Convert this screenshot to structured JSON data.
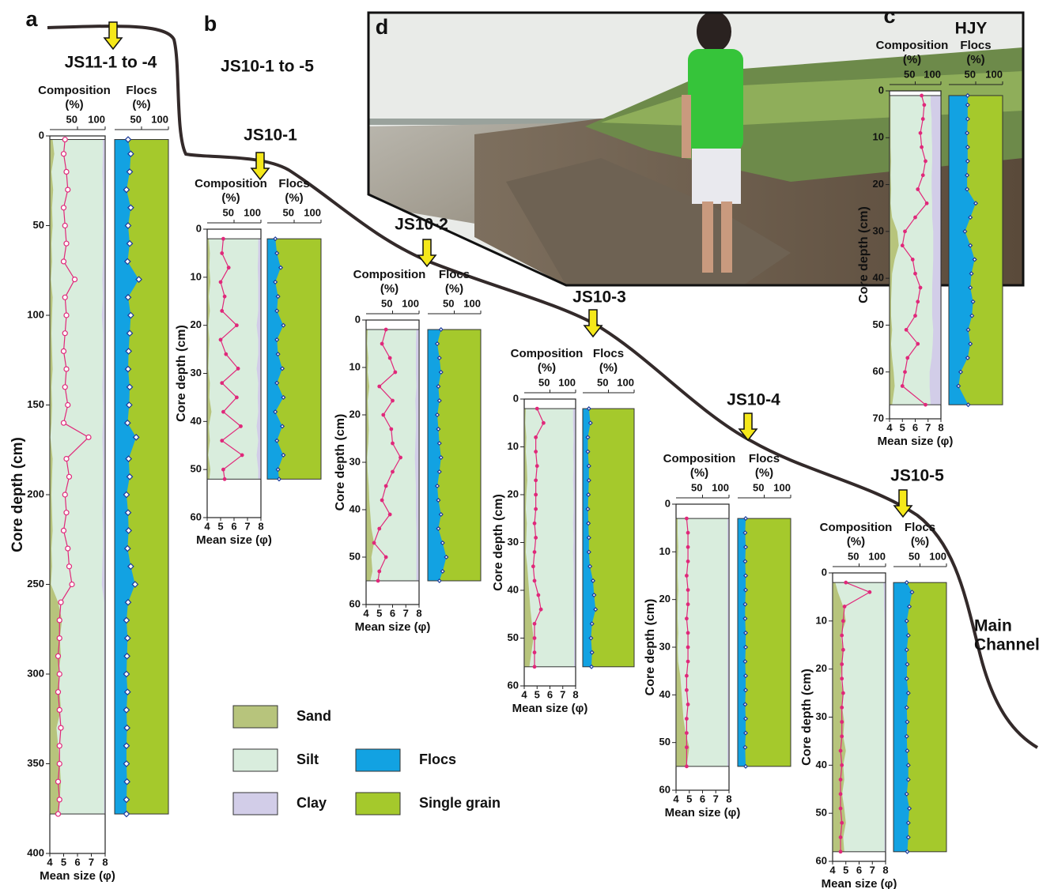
{
  "figure": {
    "letters": [
      "a",
      "b",
      "c",
      "d"
    ],
    "group_label": "JS10-1 to -5",
    "main_channel": [
      "Main",
      "Channel"
    ]
  },
  "legend": [
    {
      "name": "Sand",
      "color": "#b7c47c"
    },
    {
      "name": "Silt",
      "color": "#d9eddd"
    },
    {
      "name": "Clay",
      "color": "#d2cde8"
    },
    {
      "name": "Flocs",
      "color": "#12a2e2"
    },
    {
      "name": "Single grain",
      "color": "#a5c92c"
    }
  ],
  "chart_data": [
    {
      "type": "core",
      "title": "JS11-1 to -4",
      "composition_label": [
        "Composition",
        "(%)"
      ],
      "flocs_label": [
        "Flocs",
        "(%)"
      ],
      "ylabel": "Core depth (cm)",
      "xlabel": "Mean size (φ)",
      "ylim": [
        0,
        400
      ],
      "yticks": [
        0,
        50,
        100,
        150,
        200,
        250,
        300,
        350,
        400
      ],
      "xlim": [
        4,
        8
      ],
      "xticks": [
        4,
        5,
        6,
        7,
        8
      ],
      "comp_lim": [
        0,
        100
      ],
      "comp_ticks": [
        50,
        100
      ],
      "flocs_lim": [
        0,
        100
      ],
      "flocs_ticks": [
        50,
        100
      ],
      "depth": [
        2,
        10,
        20,
        30,
        40,
        50,
        60,
        70,
        80,
        90,
        100,
        110,
        120,
        130,
        140,
        150,
        160,
        168,
        180,
        190,
        200,
        210,
        220,
        230,
        240,
        250,
        260,
        270,
        280,
        290,
        300,
        310,
        320,
        330,
        340,
        350,
        360,
        370,
        378
      ],
      "mean_size": [
        5.1,
        5.0,
        5.2,
        5.3,
        5.0,
        5.1,
        5.2,
        5.0,
        5.8,
        5.1,
        5.2,
        5.1,
        5.0,
        5.2,
        5.1,
        5.3,
        5.0,
        6.8,
        5.2,
        5.4,
        5.1,
        5.2,
        5.0,
        5.3,
        5.4,
        5.6,
        4.8,
        4.7,
        4.7,
        4.6,
        4.7,
        4.6,
        4.7,
        4.8,
        4.7,
        4.7,
        4.6,
        4.7,
        4.6
      ],
      "sand": [
        5,
        8,
        3,
        6,
        4,
        5,
        3,
        4,
        2,
        5,
        4,
        3,
        4,
        5,
        3,
        4,
        3,
        1,
        5,
        4,
        3,
        4,
        5,
        3,
        4,
        2,
        15,
        22,
        18,
        20,
        15,
        18,
        20,
        12,
        15,
        18,
        20,
        18,
        15
      ],
      "clay": [
        4,
        4,
        5,
        4,
        4,
        3,
        4,
        4,
        5,
        4,
        6,
        4,
        4,
        4,
        5,
        4,
        4,
        5,
        4,
        4,
        4,
        5,
        4,
        4,
        5,
        6,
        2,
        2,
        2,
        2,
        2,
        2,
        2,
        2,
        2,
        2,
        2,
        2,
        2
      ],
      "flocs": [
        25,
        30,
        28,
        22,
        30,
        25,
        28,
        24,
        45,
        25,
        30,
        28,
        26,
        25,
        28,
        27,
        24,
        40,
        26,
        28,
        22,
        25,
        26,
        24,
        30,
        38,
        25,
        22,
        24,
        23,
        22,
        24,
        22,
        23,
        22,
        22,
        23,
        22,
        22
      ]
    },
    {
      "type": "core",
      "title": "JS10-1",
      "composition_label": [
        "Composition",
        "(%)"
      ],
      "flocs_label": [
        "Flocs",
        "(%)"
      ],
      "ylabel": "Core depth (cm)",
      "xlabel": "Mean size (φ)",
      "ylim": [
        0,
        60
      ],
      "yticks": [
        0,
        10,
        20,
        30,
        40,
        50,
        60
      ],
      "xlim": [
        4,
        8
      ],
      "xticks": [
        4,
        5,
        6,
        7,
        8
      ],
      "comp_lim": [
        0,
        100
      ],
      "comp_ticks": [
        50,
        100
      ],
      "flocs_lim": [
        0,
        100
      ],
      "flocs_ticks": [
        50,
        100
      ],
      "depth": [
        2,
        5,
        8,
        11,
        14,
        17,
        20,
        23,
        26,
        29,
        32,
        35,
        38,
        41,
        44,
        47,
        50,
        52
      ],
      "mean_size": [
        5.2,
        5.1,
        5.6,
        5.0,
        5.3,
        5.1,
        6.2,
        5.0,
        5.4,
        6.3,
        5.1,
        6.2,
        5.2,
        6.5,
        5.1,
        6.6,
        5.2,
        5.3
      ],
      "sand": [
        3,
        5,
        4,
        6,
        3,
        5,
        2,
        4,
        3,
        2,
        5,
        4,
        8,
        3,
        5,
        2,
        6,
        4
      ],
      "clay": [
        5,
        5,
        6,
        5,
        5,
        5,
        8,
        5,
        5,
        8,
        5,
        6,
        5,
        8,
        5,
        8,
        5,
        5
      ],
      "flocs": [
        15,
        18,
        25,
        15,
        20,
        18,
        30,
        18,
        20,
        28,
        18,
        30,
        15,
        28,
        18,
        30,
        20,
        22
      ]
    },
    {
      "type": "core",
      "title": "JS10-2",
      "composition_label": [
        "Composition",
        "(%)"
      ],
      "flocs_label": [
        "Flocs",
        "(%)"
      ],
      "ylabel": "Core depth (cm)",
      "xlabel": "Mean size (φ)",
      "ylim": [
        0,
        60
      ],
      "yticks": [
        0,
        10,
        20,
        30,
        40,
        50,
        60
      ],
      "xlim": [
        4,
        8
      ],
      "xticks": [
        4,
        5,
        6,
        7,
        8
      ],
      "comp_lim": [
        0,
        100
      ],
      "comp_ticks": [
        50,
        100
      ],
      "flocs_lim": [
        0,
        100
      ],
      "flocs_ticks": [
        50,
        100
      ],
      "depth": [
        2,
        5,
        8,
        11,
        14,
        17,
        20,
        23,
        26,
        29,
        32,
        35,
        38,
        41,
        44,
        47,
        50,
        53,
        55
      ],
      "mean_size": [
        5.5,
        5.2,
        5.8,
        6.2,
        5.0,
        6.0,
        5.3,
        5.9,
        6.0,
        6.6,
        6.0,
        5.5,
        5.2,
        5.8,
        5.0,
        4.6,
        5.5,
        5.0,
        4.9
      ],
      "sand": [
        3,
        2,
        4,
        3,
        6,
        3,
        4,
        5,
        4,
        2,
        3,
        5,
        6,
        8,
        10,
        15,
        10,
        12,
        8
      ],
      "clay": [
        5,
        6,
        6,
        6,
        5,
        7,
        6,
        6,
        7,
        8,
        7,
        6,
        6,
        6,
        5,
        5,
        5,
        5,
        5
      ],
      "flocs": [
        25,
        18,
        22,
        25,
        20,
        22,
        18,
        20,
        22,
        25,
        22,
        18,
        20,
        25,
        20,
        28,
        35,
        28,
        22
      ]
    },
    {
      "type": "core",
      "title": "JS10-3",
      "composition_label": [
        "Composition",
        "(%)"
      ],
      "flocs_label": [
        "Flocs",
        "(%)"
      ],
      "ylabel": "Core depth (cm)",
      "xlabel": "Mean size (φ)",
      "ylim": [
        0,
        60
      ],
      "yticks": [
        0,
        10,
        20,
        30,
        40,
        50,
        60
      ],
      "xlim": [
        4,
        8
      ],
      "xticks": [
        4,
        5,
        6,
        7,
        8
      ],
      "comp_lim": [
        0,
        100
      ],
      "comp_ticks": [
        50,
        100
      ],
      "flocs_lim": [
        0,
        100
      ],
      "flocs_ticks": [
        50,
        100
      ],
      "depth": [
        2,
        5,
        8,
        11,
        14,
        17,
        20,
        23,
        26,
        29,
        32,
        35,
        38,
        41,
        44,
        47,
        50,
        53,
        56
      ],
      "mean_size": [
        5.0,
        5.5,
        4.9,
        4.9,
        5.0,
        4.9,
        4.9,
        4.9,
        4.8,
        4.9,
        4.8,
        4.7,
        4.8,
        5.1,
        5.3,
        4.8,
        4.8,
        4.8,
        4.8
      ],
      "sand": [
        3,
        2,
        4,
        3,
        5,
        6,
        4,
        3,
        5,
        4,
        3,
        6,
        8,
        10,
        12,
        15,
        18,
        14,
        10
      ],
      "clay": [
        5,
        5,
        4,
        5,
        4,
        5,
        4,
        4,
        5,
        4,
        5,
        4,
        4,
        4,
        4,
        3,
        3,
        3,
        3
      ],
      "flocs": [
        12,
        15,
        10,
        10,
        12,
        12,
        11,
        10,
        11,
        12,
        12,
        14,
        20,
        22,
        25,
        18,
        16,
        18,
        17
      ]
    },
    {
      "type": "core",
      "title": "JS10-4",
      "composition_label": [
        "Composition",
        "(%)"
      ],
      "flocs_label": [
        "Flocs",
        "(%)"
      ],
      "ylabel": "Core depth (cm)",
      "xlabel": "Mean size (φ)",
      "ylim": [
        0,
        60
      ],
      "yticks": [
        0,
        10,
        20,
        30,
        40,
        50,
        60
      ],
      "xlim": [
        4,
        8
      ],
      "xticks": [
        4,
        5,
        6,
        7,
        8
      ],
      "comp_lim": [
        0,
        100
      ],
      "comp_ticks": [
        50,
        100
      ],
      "flocs_lim": [
        0,
        100
      ],
      "flocs_ticks": [
        50,
        100
      ],
      "depth": [
        3,
        6,
        9,
        12,
        15,
        18,
        21,
        24,
        27,
        30,
        33,
        36,
        39,
        42,
        45,
        48,
        51,
        55
      ],
      "mean_size": [
        4.8,
        4.9,
        4.9,
        4.9,
        4.8,
        4.9,
        4.9,
        4.8,
        4.9,
        4.9,
        4.9,
        4.8,
        4.8,
        4.9,
        4.8,
        4.8,
        4.8,
        4.8
      ],
      "sand": [
        3,
        3,
        4,
        3,
        3,
        4,
        3,
        3,
        4,
        3,
        4,
        8,
        10,
        12,
        14,
        18,
        25,
        20
      ],
      "clay": [
        3,
        3,
        3,
        3,
        3,
        3,
        3,
        3,
        3,
        3,
        3,
        3,
        3,
        3,
        3,
        3,
        3,
        3
      ],
      "flocs": [
        15,
        14,
        15,
        14,
        15,
        15,
        14,
        14,
        15,
        15,
        14,
        15,
        15,
        14,
        15,
        15,
        14,
        15
      ]
    },
    {
      "type": "core",
      "title": "JS10-5",
      "composition_label": [
        "Composition",
        "(%)"
      ],
      "flocs_label": [
        "Flocs",
        "(%)"
      ],
      "ylabel": "Core depth (cm)",
      "xlabel": "Mean size (φ)",
      "ylim": [
        0,
        60
      ],
      "yticks": [
        0,
        10,
        20,
        30,
        40,
        50,
        60
      ],
      "xlim": [
        4,
        8
      ],
      "xticks": [
        4,
        5,
        6,
        7,
        8
      ],
      "comp_lim": [
        0,
        100
      ],
      "comp_ticks": [
        50,
        100
      ],
      "flocs_lim": [
        0,
        100
      ],
      "flocs_ticks": [
        50,
        100
      ],
      "depth": [
        2,
        4,
        7,
        10,
        13,
        16,
        19,
        22,
        25,
        28,
        31,
        34,
        37,
        40,
        43,
        46,
        49,
        52,
        55,
        58
      ],
      "mean_size": [
        5.0,
        6.8,
        4.9,
        4.8,
        4.7,
        4.8,
        4.7,
        4.7,
        4.8,
        4.7,
        4.7,
        4.7,
        4.6,
        4.7,
        4.6,
        4.6,
        4.6,
        4.7,
        4.6,
        4.6
      ],
      "sand": [
        5,
        10,
        20,
        25,
        15,
        20,
        18,
        15,
        20,
        18,
        22,
        20,
        25,
        20,
        22,
        18,
        22,
        25,
        20,
        22
      ],
      "clay": [
        4,
        3,
        3,
        2,
        2,
        2,
        2,
        2,
        2,
        2,
        2,
        2,
        2,
        2,
        2,
        2,
        2,
        2,
        2,
        2
      ],
      "flocs": [
        25,
        35,
        30,
        25,
        28,
        25,
        26,
        25,
        28,
        25,
        26,
        25,
        26,
        28,
        28,
        25,
        30,
        28,
        28,
        26
      ]
    },
    {
      "type": "core",
      "title": "HJY",
      "composition_label": [
        "Composition",
        "(%)"
      ],
      "flocs_label": [
        "Flocs",
        "(%)"
      ],
      "ylabel": "Core depth (cm)",
      "xlabel": "Mean size (φ)",
      "ylim": [
        0,
        70
      ],
      "yticks": [
        0,
        10,
        20,
        30,
        40,
        50,
        60,
        70
      ],
      "xlim": [
        4,
        8
      ],
      "xticks": [
        4,
        5,
        6,
        7,
        8
      ],
      "comp_lim": [
        0,
        100
      ],
      "comp_ticks": [
        50,
        100
      ],
      "flocs_lim": [
        0,
        100
      ],
      "flocs_ticks": [
        50,
        100
      ],
      "depth": [
        1,
        3,
        6,
        9,
        12,
        15,
        18,
        21,
        24,
        27,
        30,
        33,
        36,
        39,
        42,
        45,
        48,
        51,
        54,
        57,
        60,
        63,
        67
      ],
      "mean_size": [
        6.5,
        6.7,
        6.6,
        6.4,
        6.5,
        6.8,
        6.6,
        6.2,
        6.9,
        6.0,
        5.2,
        5.0,
        5.8,
        6.0,
        6.4,
        6.2,
        6.0,
        5.3,
        6.2,
        5.4,
        5.2,
        5.0,
        6.8
      ],
      "sand": [
        2,
        2,
        2,
        2,
        2,
        3,
        2,
        3,
        2,
        5,
        15,
        18,
        10,
        5,
        4,
        3,
        3,
        5,
        3,
        5,
        8,
        10,
        5
      ],
      "clay": [
        20,
        20,
        18,
        18,
        17,
        17,
        18,
        18,
        17,
        17,
        15,
        15,
        15,
        16,
        17,
        17,
        17,
        15,
        16,
        18,
        22,
        22,
        20
      ],
      "flocs": [
        35,
        35,
        35,
        34,
        35,
        35,
        34,
        34,
        50,
        40,
        30,
        40,
        48,
        42,
        40,
        45,
        43,
        36,
        40,
        35,
        22,
        18,
        36
      ]
    }
  ]
}
